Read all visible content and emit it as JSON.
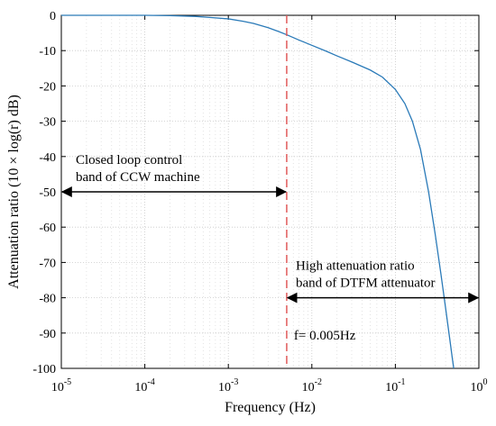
{
  "chart_data": {
    "type": "line",
    "xscale": "log",
    "xlim": [
      1e-05,
      1
    ],
    "ylim": [
      -100,
      0
    ],
    "xlabel": "Frequency (Hz)",
    "ylabel": "Attenuation ratio (10 × log(r) dB)",
    "grid": true,
    "x_ticks": [
      {
        "value": 1e-05,
        "base": "10",
        "exp": "-5"
      },
      {
        "value": 0.0001,
        "base": "10",
        "exp": "-4"
      },
      {
        "value": 0.001,
        "base": "10",
        "exp": "-3"
      },
      {
        "value": 0.01,
        "base": "10",
        "exp": "-2"
      },
      {
        "value": 0.1,
        "base": "10",
        "exp": "-1"
      },
      {
        "value": 1,
        "base": "10",
        "exp": "0"
      }
    ],
    "y_ticks": [
      0,
      -10,
      -20,
      -30,
      -40,
      -50,
      -60,
      -70,
      -80,
      -90,
      -100
    ],
    "series": [
      {
        "color": "#2a7ab8",
        "x": [
          1e-05,
          3e-05,
          0.0001,
          0.0002,
          0.0004,
          0.0006,
          0.001,
          0.0015,
          0.002,
          0.003,
          0.004,
          0.005,
          0.007,
          0.01,
          0.015,
          0.02,
          0.03,
          0.05,
          0.07,
          0.1,
          0.13,
          0.16,
          0.2,
          0.25,
          0.3,
          0.35,
          0.4,
          0.45,
          0.48,
          0.5
        ],
        "y": [
          0,
          0,
          0,
          -0.1,
          -0.3,
          -0.6,
          -1.0,
          -1.7,
          -2.3,
          -3.5,
          -4.6,
          -5.5,
          -7.0,
          -8.5,
          -10.2,
          -11.5,
          -13.2,
          -15.5,
          -17.5,
          -21.0,
          -25.0,
          -30.0,
          -38.0,
          -50.0,
          -62.0,
          -73.0,
          -83.0,
          -92.0,
          -97.0,
          -100.0
        ]
      }
    ],
    "reference_line": {
      "x": 0.005,
      "color": "#e05a5a",
      "label": "f= 0.005Hz"
    },
    "annotations": [
      {
        "line1": "Closed loop control",
        "line2": "band of CCW machine",
        "arrow_from_x": 1e-05,
        "arrow_to_x": 0.005,
        "arrow_y": -50
      },
      {
        "line1": "High attenuation ratio",
        "line2": "band of DTFM attenuator",
        "arrow_from_x": 0.005,
        "arrow_to_x": 1,
        "arrow_y": -80
      }
    ]
  }
}
